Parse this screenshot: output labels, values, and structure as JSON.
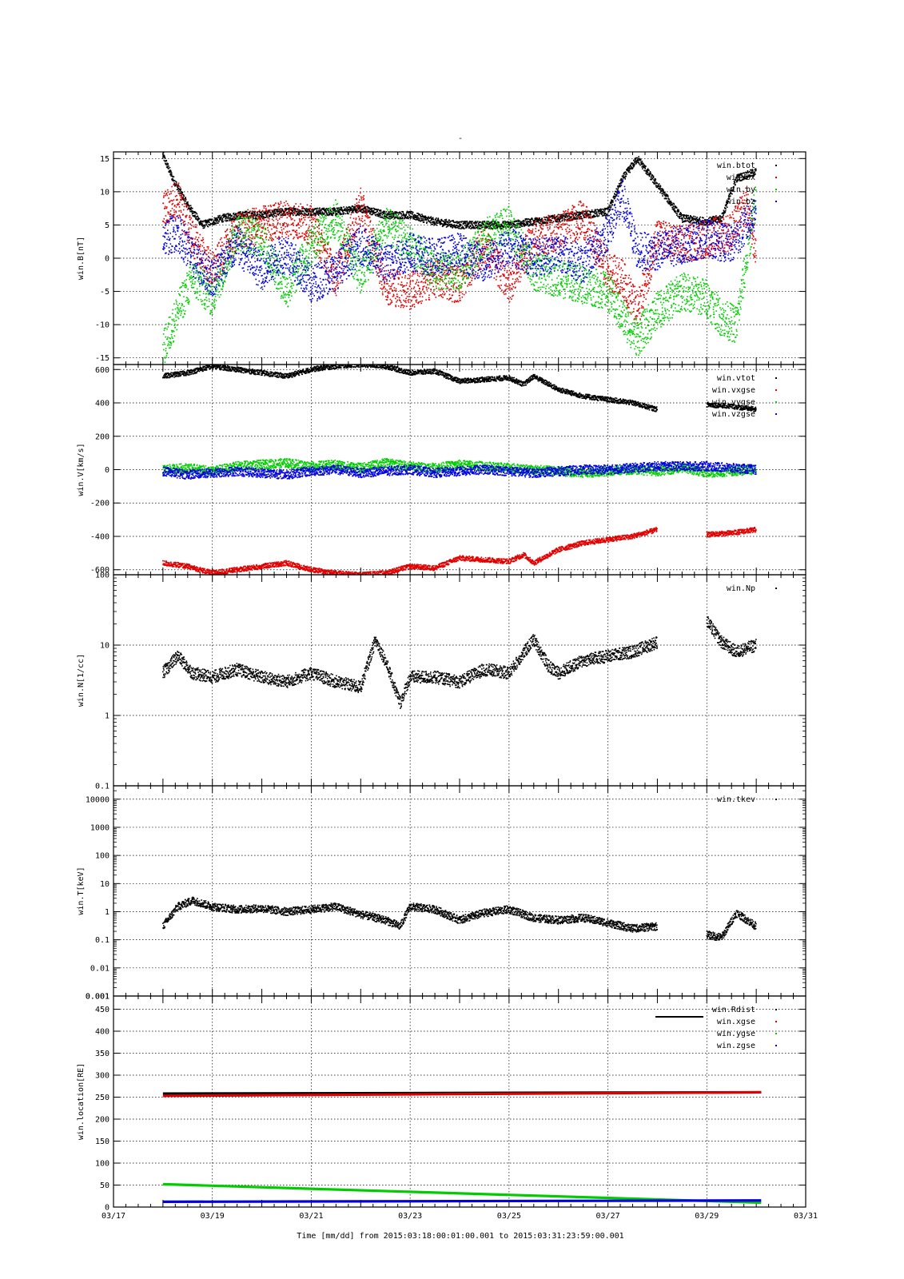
{
  "figure": {
    "title": "-",
    "xlabel": "Time [mm/dd]  from 2015:03:18:00:01:00.001  to  2015:03:31:23:59:00.001",
    "x_ticks": [
      "03/17",
      "03/19",
      "03/21",
      "03/23",
      "03/25",
      "03/27",
      "03/29",
      "03/31"
    ]
  },
  "colors": {
    "black": "#000000",
    "red": "#e00000",
    "green": "#00cc00",
    "blue": "#0000e0"
  },
  "chart_data": [
    {
      "type": "scatter",
      "name": "win.B",
      "ylabel": "win.B[nT]",
      "ylim": [
        -16,
        16
      ],
      "y_ticks": [
        -15,
        -10,
        -5,
        0,
        5,
        10,
        15
      ],
      "xlim_days": [
        17,
        31
      ],
      "grid": true,
      "legend_placement": "top-right",
      "legend": [
        "win.btot",
        "win.bx",
        "win.by",
        "win.bz"
      ],
      "series": [
        {
          "name": "win.btot",
          "color": "black",
          "x": [
            18.0,
            18.2,
            18.5,
            18.8,
            19.2,
            19.6,
            20.0,
            20.5,
            21.0,
            21.5,
            22.0,
            22.5,
            23.0,
            23.5,
            24.0,
            24.5,
            25.0,
            25.5,
            26.0,
            26.5,
            27.0,
            27.3,
            27.6,
            28.0,
            28.5,
            29.0,
            29.3,
            29.6,
            30.0
          ],
          "y": [
            15.5,
            12,
            8,
            5,
            6,
            6.5,
            6.5,
            7,
            7,
            7,
            7.5,
            6.5,
            6.5,
            5.5,
            5,
            5,
            5,
            5.5,
            6,
            6.5,
            7,
            12,
            15,
            11,
            6,
            5.5,
            6,
            12,
            13
          ]
        },
        {
          "name": "win.bx",
          "color": "red",
          "x": [
            18.0,
            18.3,
            18.6,
            19.0,
            19.5,
            20.0,
            20.5,
            21.0,
            21.5,
            22.0,
            22.5,
            23.0,
            23.5,
            24.0,
            24.5,
            25.0,
            25.5,
            26.0,
            26.5,
            27.0,
            27.3,
            27.6,
            28.0,
            28.5,
            29.0,
            29.5,
            29.8,
            30.0
          ],
          "y": [
            7,
            9,
            3,
            -2,
            4,
            5,
            6,
            5,
            -3,
            8,
            -4,
            -5,
            -3,
            -4,
            2,
            -4,
            3,
            4,
            6,
            -2,
            -3,
            -8,
            3,
            2,
            3,
            4,
            8,
            1
          ]
        },
        {
          "name": "win.by",
          "color": "green",
          "x": [
            18.0,
            18.3,
            18.6,
            19.0,
            19.5,
            20.0,
            20.5,
            21.0,
            21.5,
            22.0,
            22.5,
            23.0,
            23.5,
            24.0,
            24.5,
            25.0,
            25.5,
            26.0,
            26.5,
            27.0,
            27.3,
            27.6,
            28.0,
            28.5,
            29.0,
            29.3,
            29.6,
            30.0
          ],
          "y": [
            -14,
            -8,
            -3,
            -6,
            4,
            3,
            -5,
            2,
            6,
            -3,
            5,
            2,
            -2,
            -2,
            3,
            5,
            -2,
            -3,
            -4,
            -5,
            -9,
            -12,
            -8,
            -5,
            -6,
            -9,
            -10,
            9
          ]
        },
        {
          "name": "win.bz",
          "color": "blue",
          "x": [
            18.0,
            18.3,
            18.6,
            19.0,
            19.5,
            20.0,
            20.5,
            21.0,
            21.5,
            22.0,
            22.5,
            23.0,
            23.5,
            24.0,
            24.5,
            25.0,
            25.5,
            26.0,
            26.5,
            27.0,
            27.3,
            27.6,
            28.0,
            28.5,
            29.0,
            29.5,
            29.8,
            30.0
          ],
          "y": [
            3,
            4,
            0,
            -3,
            2,
            -2,
            1,
            -4,
            -2,
            2,
            -1,
            1,
            0,
            1,
            -1,
            2,
            0,
            1,
            -1,
            4,
            9,
            1,
            1,
            2,
            3,
            2,
            5,
            7
          ]
        }
      ]
    },
    {
      "type": "scatter",
      "name": "win.V",
      "ylabel": "win.V[km/s]",
      "ylim": [
        -630,
        630
      ],
      "y_ticks": [
        -600,
        -400,
        -200,
        0,
        200,
        400,
        600
      ],
      "xlim_days": [
        17,
        31
      ],
      "grid": true,
      "legend_placement": "top-right",
      "legend": [
        "win.vtot",
        "win.vxgse",
        "win.vygse",
        "win.vzgse"
      ],
      "series": [
        {
          "name": "win.vtot",
          "color": "black",
          "x": [
            18.0,
            18.5,
            19.0,
            19.5,
            20.0,
            20.5,
            21.0,
            21.5,
            22.0,
            22.5,
            23.0,
            23.5,
            24.0,
            24.5,
            25.0,
            25.3,
            25.5,
            26.0,
            26.5,
            27.0,
            27.5,
            28.0,
            null,
            29.0,
            29.5,
            30.0
          ],
          "y": [
            560,
            580,
            620,
            600,
            580,
            560,
            600,
            620,
            630,
            620,
            580,
            590,
            530,
            540,
            550,
            510,
            560,
            480,
            440,
            420,
            400,
            360,
            null,
            390,
            380,
            360
          ]
        },
        {
          "name": "win.vxgse",
          "color": "red",
          "x": [
            18.0,
            18.5,
            19.0,
            19.5,
            20.0,
            20.5,
            21.0,
            21.5,
            22.0,
            22.5,
            23.0,
            23.5,
            24.0,
            24.5,
            25.0,
            25.3,
            25.5,
            26.0,
            26.5,
            27.0,
            27.5,
            28.0,
            null,
            29.0,
            29.5,
            30.0
          ],
          "y": [
            -560,
            -580,
            -620,
            -600,
            -580,
            -560,
            -600,
            -620,
            -630,
            -620,
            -580,
            -590,
            -530,
            -540,
            -550,
            -510,
            -560,
            -480,
            -440,
            -420,
            -400,
            -360,
            null,
            -390,
            -380,
            -360
          ]
        },
        {
          "name": "win.vygse",
          "color": "green",
          "x": [
            18.0,
            18.5,
            19.0,
            19.5,
            20.0,
            20.5,
            21.0,
            21.5,
            22.0,
            22.5,
            23.0,
            23.5,
            24.0,
            24.5,
            25.0,
            25.5,
            26.0,
            26.5,
            27.0,
            27.5,
            28.0,
            28.5,
            29.0,
            29.5,
            30.0
          ],
          "y": [
            0,
            10,
            -10,
            20,
            30,
            40,
            20,
            30,
            10,
            40,
            20,
            10,
            30,
            20,
            10,
            0,
            -10,
            -20,
            -10,
            0,
            -10,
            10,
            -20,
            -10,
            0
          ]
        },
        {
          "name": "win.vzgse",
          "color": "blue",
          "x": [
            18.0,
            18.5,
            19.0,
            19.5,
            20.0,
            20.5,
            21.0,
            21.5,
            22.0,
            22.5,
            23.0,
            23.5,
            24.0,
            24.5,
            25.0,
            25.5,
            26.0,
            26.5,
            27.0,
            27.5,
            28.0,
            28.5,
            29.0,
            29.5,
            30.0
          ],
          "y": [
            -10,
            -30,
            -20,
            -10,
            -20,
            -30,
            -10,
            0,
            -20,
            -10,
            0,
            -20,
            -10,
            0,
            -10,
            -20,
            -10,
            0,
            0,
            10,
            20,
            20,
            20,
            10,
            0
          ]
        }
      ]
    },
    {
      "type": "scatter",
      "name": "win.N",
      "ylabel": "win.N[1/cc]",
      "yscale": "log",
      "ylim": [
        0.1,
        100
      ],
      "y_ticks": [
        "0.1",
        "1",
        "10",
        "100"
      ],
      "xlim_days": [
        17,
        31
      ],
      "grid": true,
      "legend_placement": "top-right",
      "legend": [
        "win.Np"
      ],
      "series": [
        {
          "name": "win.Np",
          "color": "black",
          "x": [
            18.0,
            18.3,
            18.6,
            19.0,
            19.5,
            20.0,
            20.5,
            21.0,
            21.5,
            22.0,
            22.3,
            22.5,
            22.8,
            23.0,
            23.5,
            24.0,
            24.5,
            25.0,
            25.5,
            25.8,
            26.0,
            26.5,
            27.0,
            27.5,
            28.0,
            null,
            29.0,
            29.3,
            29.6,
            30.0
          ],
          "y": [
            4,
            7,
            4,
            3.5,
            4.5,
            3.5,
            3,
            4,
            3,
            2.5,
            12,
            6,
            1.5,
            3.5,
            3.5,
            3,
            4.5,
            4,
            12,
            5,
            4,
            6,
            7,
            8,
            11,
            null,
            22,
            11,
            8,
            10
          ]
        }
      ]
    },
    {
      "type": "scatter",
      "name": "win.T",
      "ylabel": "win.T[keV]",
      "yscale": "log",
      "ylim": [
        0.001,
        30000
      ],
      "y_ticks": [
        "0.001",
        "0.01",
        "0.1",
        "1",
        "10",
        "100",
        "1000",
        "10000"
      ],
      "extra_tick": "0.001",
      "xlim_days": [
        17,
        31
      ],
      "grid": true,
      "legend_placement": "top-right",
      "legend": [
        "win.tkev"
      ],
      "series": [
        {
          "name": "win.tkev",
          "color": "black",
          "x": [
            18.0,
            18.3,
            18.6,
            19.0,
            19.5,
            20.0,
            20.5,
            21.0,
            21.5,
            22.0,
            22.5,
            22.8,
            23.0,
            23.5,
            24.0,
            24.5,
            25.0,
            25.5,
            26.0,
            26.5,
            27.0,
            27.5,
            28.0,
            null,
            29.0,
            29.3,
            29.6,
            30.0
          ],
          "y": [
            0.3,
            1.5,
            2.5,
            1.5,
            1.2,
            1.3,
            1.0,
            1.2,
            1.5,
            0.8,
            0.5,
            0.3,
            1.5,
            1.2,
            0.5,
            0.9,
            1.2,
            0.6,
            0.5,
            0.6,
            0.4,
            0.25,
            0.3,
            null,
            0.15,
            0.12,
            0.9,
            0.3
          ]
        }
      ]
    },
    {
      "type": "line",
      "name": "win.location",
      "ylabel": "win.location[RE]",
      "ylim": [
        0,
        480
      ],
      "y_ticks": [
        0,
        50,
        100,
        150,
        200,
        250,
        300,
        350,
        400,
        450
      ],
      "xlim_days": [
        17,
        31
      ],
      "grid": true,
      "legend_placement": "top-right",
      "legend": [
        "win.Rdist",
        "win.xgse",
        "win.ygse",
        "win.zgse"
      ],
      "series": [
        {
          "name": "win.Rdist",
          "color": "black",
          "x": [
            18.0,
            30.1
          ],
          "y": [
            258,
            261
          ]
        },
        {
          "name": "win.xgse",
          "color": "red",
          "x": [
            18.0,
            30.1
          ],
          "y": [
            253,
            261
          ]
        },
        {
          "name": "win.ygse",
          "color": "green",
          "x": [
            18.0,
            30.1
          ],
          "y": [
            52,
            10
          ]
        },
        {
          "name": "win.zgse",
          "color": "blue",
          "x": [
            18.0,
            30.1
          ],
          "y": [
            12,
            15
          ]
        }
      ]
    }
  ]
}
